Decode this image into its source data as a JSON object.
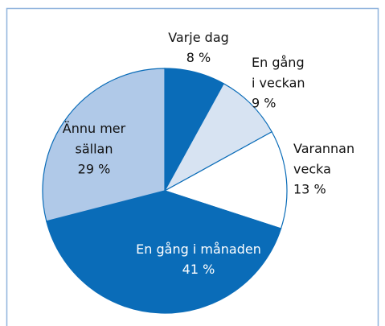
{
  "chart_data": {
    "type": "pie",
    "categories": [
      "Varje dag",
      "En gång\ni veckan",
      "Varannan\nvecka",
      "En gång i månaden",
      "Ännu mer\nsällan"
    ],
    "values": [
      8,
      9,
      13,
      41,
      29
    ],
    "value_labels": [
      "8 %",
      "9 %",
      "13 %",
      "41 %",
      "29 %"
    ],
    "colors": [
      "#0a6cb8",
      "#d7e3f2",
      "#ffffff",
      "#0a6cb8",
      "#b0c9e8"
    ]
  }
}
